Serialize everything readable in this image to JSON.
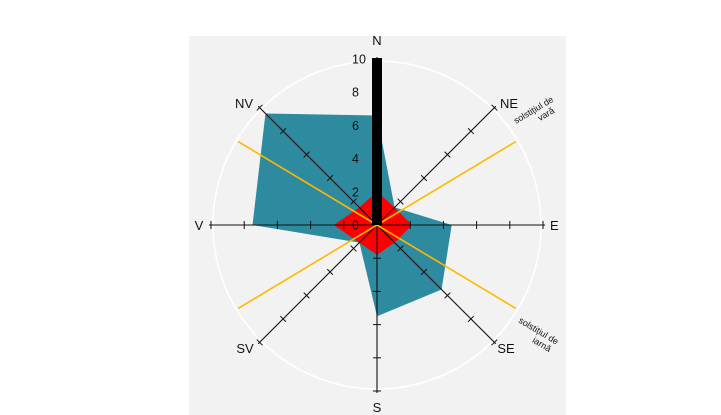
{
  "chart_data": {
    "type": "radar",
    "directions": [
      "N",
      "NE",
      "E",
      "SE",
      "S",
      "SV",
      "V",
      "NV"
    ],
    "radial_ticks": [
      "0",
      "2",
      "4",
      "6",
      "8",
      "10"
    ],
    "rlim": [
      0,
      10
    ],
    "grid": true,
    "series": [
      {
        "color": "#2e8a9e",
        "values": [
          6.6,
          1.5,
          4.5,
          5.5,
          5.5,
          1.5,
          7.5,
          9.5
        ]
      },
      {
        "color": "#ff0000",
        "values": [
          2.0,
          1.5,
          2.1,
          1.5,
          1.8,
          1.5,
          2.6,
          1.5
        ]
      },
      {
        "color": "#000000",
        "values": [
          10,
          0,
          0,
          0,
          0,
          0,
          0,
          0
        ]
      }
    ],
    "reference_lines": [
      {
        "label_line1": "solstițiul de",
        "label_line2": "vară",
        "color": "#ffb800",
        "azimuth_deg": 59
      },
      {
        "label_line1": "solstițiul de",
        "label_line2": "iarnă",
        "color": "#ffb800",
        "azimuth_deg": 121
      }
    ],
    "colors": {
      "panel": "#f2f2f2",
      "axis": "#111111",
      "grid": "#ffffff"
    }
  }
}
